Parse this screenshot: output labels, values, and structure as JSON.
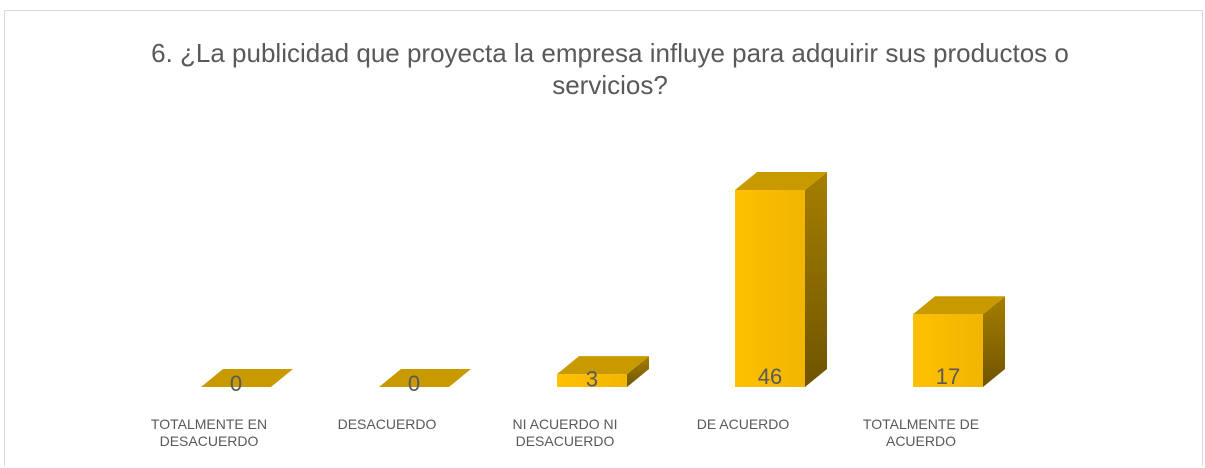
{
  "chart_data": {
    "type": "bar3d",
    "title": "6. ¿La publicidad que proyecta la empresa influye para adquirir sus productos o servicios?",
    "categories": [
      "TOTALMENTE EN DESACUERDO",
      "DESACUERDO",
      "NI ACUERDO NI DESACUERDO",
      "DE ACUERDO",
      "TOTALMENTE DE ACUERDO"
    ],
    "values": [
      0,
      0,
      3,
      46,
      17
    ],
    "color": "#ffc000"
  }
}
